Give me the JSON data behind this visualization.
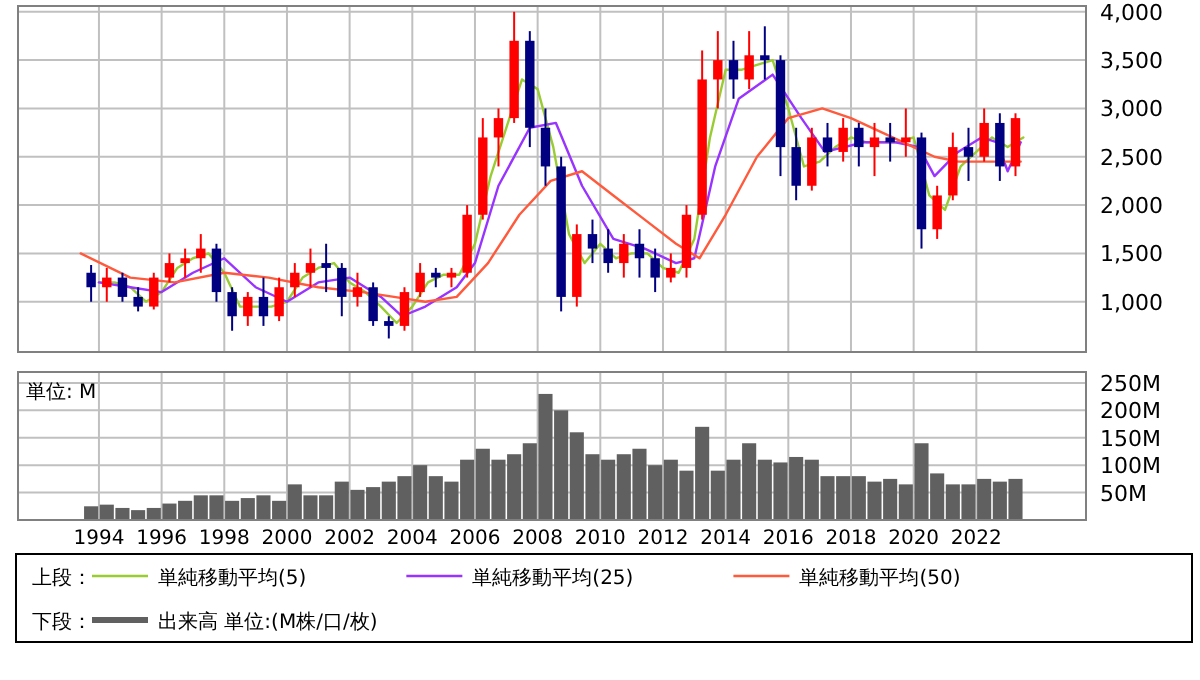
{
  "chart_data": [
    {
      "type": "candlestick",
      "legend": "bottom",
      "legend_title": "上段：",
      "grid": true,
      "tick_labels": "y",
      "xlim": [
        "1991-06",
        "2025-07"
      ],
      "ylim": [
        480,
        4060
      ],
      "xticks": [
        "1994",
        "1996",
        "1998",
        "2000",
        "2002",
        "2004",
        "2006",
        "2008",
        "2010",
        "2012",
        "2014",
        "2016",
        "2018",
        "2020",
        "2022"
      ],
      "yticks": [
        {
          "value": 1000,
          "label": "1,000"
        },
        {
          "value": 1500,
          "label": "1,500"
        },
        {
          "value": 2000,
          "label": "2,000"
        },
        {
          "value": 2500,
          "label": "2,500"
        },
        {
          "value": 3000,
          "label": "3,000"
        },
        {
          "value": 3500,
          "label": "3,500"
        },
        {
          "value": 4000,
          "label": "4,000"
        }
      ],
      "x": [
        "1993-10",
        "1994-04",
        "1994-10",
        "1995-04",
        "1995-10",
        "1996-04",
        "1996-10",
        "1997-04",
        "1997-10",
        "1998-04",
        "1998-10",
        "1999-04",
        "1999-10",
        "2000-04",
        "2000-10",
        "2001-04",
        "2001-10",
        "2002-04",
        "2002-10",
        "2003-04",
        "2003-10",
        "2004-04",
        "2004-10",
        "2005-04",
        "2005-10",
        "2006-04",
        "2006-10",
        "2007-04",
        "2007-10",
        "2008-04",
        "2008-10",
        "2009-04",
        "2009-10",
        "2010-04",
        "2010-10",
        "2011-04",
        "2011-10",
        "2012-04",
        "2012-10",
        "2013-04",
        "2013-10",
        "2014-04",
        "2014-10",
        "2015-04",
        "2015-10",
        "2016-04",
        "2016-10",
        "2017-04",
        "2017-10",
        "2018-04",
        "2018-10",
        "2019-04",
        "2019-10",
        "2020-04",
        "2020-10",
        "2021-04",
        "2021-10",
        "2022-04",
        "2022-10",
        "2023-04"
      ],
      "ohlc": [
        [
          1300,
          1380,
          1000,
          1150
        ],
        [
          1150,
          1350,
          1000,
          1250
        ],
        [
          1250,
          1300,
          1000,
          1050
        ],
        [
          1050,
          1150,
          900,
          950
        ],
        [
          950,
          1300,
          920,
          1250
        ],
        [
          1250,
          1500,
          1200,
          1400
        ],
        [
          1400,
          1550,
          1250,
          1450
        ],
        [
          1450,
          1700,
          1300,
          1550
        ],
        [
          1550,
          1600,
          1000,
          1100
        ],
        [
          1100,
          1150,
          700,
          850
        ],
        [
          850,
          1100,
          750,
          1050
        ],
        [
          1050,
          1250,
          750,
          850
        ],
        [
          850,
          1250,
          800,
          1150
        ],
        [
          1150,
          1400,
          1050,
          1300
        ],
        [
          1300,
          1550,
          1150,
          1400
        ],
        [
          1400,
          1600,
          1100,
          1350
        ],
        [
          1350,
          1400,
          850,
          1050
        ],
        [
          1050,
          1300,
          950,
          1150
        ],
        [
          1150,
          1200,
          750,
          800
        ],
        [
          800,
          850,
          620,
          750
        ],
        [
          750,
          1150,
          700,
          1100
        ],
        [
          1100,
          1400,
          1050,
          1300
        ],
        [
          1300,
          1350,
          1150,
          1250
        ],
        [
          1250,
          1350,
          1150,
          1300
        ],
        [
          1300,
          2000,
          1250,
          1900
        ],
        [
          1900,
          2900,
          1850,
          2700
        ],
        [
          2700,
          3000,
          2400,
          2900
        ],
        [
          2900,
          4000,
          2850,
          3700
        ],
        [
          3700,
          3800,
          2600,
          2800
        ],
        [
          2800,
          3000,
          2200,
          2400
        ],
        [
          2400,
          2500,
          900,
          1050
        ],
        [
          1050,
          1800,
          950,
          1700
        ],
        [
          1700,
          1850,
          1400,
          1550
        ],
        [
          1550,
          1750,
          1300,
          1400
        ],
        [
          1400,
          1700,
          1250,
          1600
        ],
        [
          1600,
          1750,
          1250,
          1450
        ],
        [
          1450,
          1550,
          1100,
          1250
        ],
        [
          1250,
          1500,
          1200,
          1350
        ],
        [
          1350,
          2000,
          1250,
          1900
        ],
        [
          1900,
          3600,
          1850,
          3300
        ],
        [
          3300,
          3800,
          3000,
          3500
        ],
        [
          3500,
          3700,
          3100,
          3300
        ],
        [
          3300,
          3800,
          3200,
          3550
        ],
        [
          3550,
          3850,
          3300,
          3500
        ],
        [
          3500,
          3550,
          2300,
          2600
        ],
        [
          2600,
          2800,
          2050,
          2200
        ],
        [
          2200,
          2800,
          2150,
          2700
        ],
        [
          2700,
          2850,
          2400,
          2550
        ],
        [
          2550,
          2900,
          2450,
          2800
        ],
        [
          2800,
          2850,
          2400,
          2600
        ],
        [
          2600,
          2850,
          2300,
          2700
        ],
        [
          2700,
          2850,
          2450,
          2650
        ],
        [
          2650,
          3000,
          2500,
          2700
        ],
        [
          2700,
          2750,
          1550,
          1750
        ],
        [
          1750,
          2200,
          1650,
          2100
        ],
        [
          2100,
          2750,
          2050,
          2600
        ],
        [
          2600,
          2800,
          2250,
          2500
        ],
        [
          2500,
          3000,
          2450,
          2850
        ],
        [
          2850,
          2950,
          2250,
          2400
        ],
        [
          2400,
          2950,
          2300,
          2900
        ]
      ],
      "colors": [
        "#000080",
        "#ff0000",
        "#000080",
        "#000080",
        "#ff0000",
        "#ff0000",
        "#ff0000",
        "#ff0000",
        "#000080",
        "#000080",
        "#ff0000",
        "#000080",
        "#ff0000",
        "#ff0000",
        "#ff0000",
        "#000080",
        "#000080",
        "#ff0000",
        "#000080",
        "#000080",
        "#ff0000",
        "#ff0000",
        "#000080",
        "#ff0000",
        "#ff0000",
        "#ff0000",
        "#ff0000",
        "#ff0000",
        "#000080",
        "#000080",
        "#000080",
        "#ff0000",
        "#000080",
        "#000080",
        "#ff0000",
        "#000080",
        "#000080",
        "#ff0000",
        "#ff0000",
        "#ff0000",
        "#ff0000",
        "#000080",
        "#ff0000",
        "#000080",
        "#000080",
        "#000080",
        "#ff0000",
        "#000080",
        "#ff0000",
        "#000080",
        "#ff0000",
        "#000080",
        "#ff0000",
        "#000080",
        "#ff0000",
        "#ff0000",
        "#000080",
        "#ff0000",
        "#000080",
        "#ff0000"
      ],
      "series": [
        {
          "name": "単純移動平均(5)",
          "type": "line",
          "color": "#99cc33",
          "x": [
            "1994-01",
            "1994-07",
            "1995-01",
            "1995-07",
            "1996-01",
            "1996-07",
            "1997-01",
            "1997-07",
            "1998-01",
            "1998-07",
            "1999-01",
            "1999-07",
            "2000-01",
            "2000-07",
            "2001-01",
            "2001-07",
            "2002-01",
            "2002-07",
            "2003-01",
            "2003-07",
            "2004-01",
            "2004-07",
            "2005-01",
            "2005-07",
            "2006-01",
            "2006-07",
            "2007-01",
            "2007-07",
            "2008-01",
            "2008-07",
            "2009-01",
            "2009-07",
            "2010-01",
            "2010-07",
            "2011-01",
            "2011-07",
            "2012-01",
            "2012-07",
            "2013-01",
            "2013-07",
            "2014-01",
            "2014-07",
            "2015-01",
            "2015-07",
            "2016-01",
            "2016-07",
            "2017-01",
            "2017-07",
            "2018-01",
            "2018-07",
            "2019-01",
            "2019-07",
            "2020-01",
            "2020-07",
            "2021-01",
            "2021-07",
            "2022-01",
            "2022-07",
            "2023-01",
            "2023-07"
          ],
          "values": [
            1200,
            1200,
            1150,
            1000,
            1100,
            1350,
            1450,
            1500,
            1300,
            950,
            950,
            950,
            1000,
            1250,
            1350,
            1400,
            1200,
            1100,
            950,
            780,
            950,
            1200,
            1280,
            1280,
            1600,
            2300,
            2800,
            3300,
            3200,
            2600,
            1700,
            1400,
            1600,
            1450,
            1500,
            1500,
            1350,
            1300,
            1650,
            2700,
            3400,
            3400,
            3450,
            3500,
            3000,
            2400,
            2450,
            2600,
            2700,
            2650,
            2650,
            2650,
            2700,
            2100,
            1950,
            2400,
            2550,
            2700,
            2600,
            2700
          ]
        },
        {
          "name": "単純移動平均(25)",
          "type": "line",
          "color": "#9933ff",
          "x": [
            "1994-01",
            "1995-01",
            "1996-01",
            "1997-01",
            "1998-01",
            "1999-01",
            "2000-01",
            "2001-01",
            "2002-01",
            "2003-01",
            "2003-09",
            "2004-06",
            "2005-06",
            "2006-01",
            "2006-10",
            "2007-10",
            "2008-08",
            "2009-06",
            "2010-06",
            "2011-06",
            "2012-06",
            "2013-01",
            "2013-09",
            "2014-06",
            "2015-07",
            "2016-06",
            "2017-03",
            "2018-06",
            "2019-06",
            "2020-03",
            "2020-09",
            "2021-06",
            "2022-03",
            "2022-09",
            "2023-01",
            "2023-06"
          ],
          "values": [
            1200,
            1150,
            1100,
            1300,
            1450,
            1150,
            1000,
            1200,
            1250,
            1050,
            850,
            950,
            1150,
            1400,
            2200,
            2800,
            2850,
            2200,
            1650,
            1550,
            1400,
            1450,
            2400,
            3100,
            3350,
            2900,
            2550,
            2650,
            2650,
            2600,
            2300,
            2550,
            2700,
            2650,
            2350,
            2650
          ]
        },
        {
          "name": "単純移動平均(50)",
          "type": "line",
          "color": "#ff5a3c",
          "x": [
            "1993-06",
            "1995-01",
            "1996-06",
            "1998-01",
            "1999-06",
            "2001-01",
            "2002-06",
            "2003-06",
            "2004-06",
            "2005-06",
            "2006-06",
            "2007-06",
            "2008-06",
            "2009-06",
            "2010-06",
            "2011-06",
            "2012-06",
            "2013-03",
            "2014-01",
            "2015-01",
            "2016-01",
            "2017-02",
            "2018-01",
            "2019-01",
            "2020-01",
            "2020-09",
            "2021-06",
            "2022-06",
            "2023-06"
          ],
          "values": [
            1500,
            1250,
            1200,
            1300,
            1250,
            1150,
            1100,
            1050,
            1000,
            1050,
            1400,
            1900,
            2250,
            2350,
            2100,
            1850,
            1600,
            1450,
            1900,
            2500,
            2900,
            3000,
            2900,
            2750,
            2600,
            2500,
            2450,
            2450,
            2450
          ]
        }
      ]
    },
    {
      "type": "bar",
      "legend": "bottom",
      "legend_title": "下段：",
      "grid": true,
      "ylabel": "単位: M",
      "xlim": [
        "1991-06",
        "2025-07"
      ],
      "ylim": [
        0,
        270
      ],
      "xticks": [
        "1994",
        "1996",
        "1998",
        "2000",
        "2002",
        "2004",
        "2006",
        "2008",
        "2010",
        "2012",
        "2014",
        "2016",
        "2018",
        "2020",
        "2022"
      ],
      "yticks": [
        {
          "value": 50,
          "label": "50M"
        },
        {
          "value": 100,
          "label": "100M"
        },
        {
          "value": 150,
          "label": "150M"
        },
        {
          "value": 200,
          "label": "200M"
        },
        {
          "value": 250,
          "label": "250M"
        }
      ],
      "x": [
        "1993-10",
        "1994-04",
        "1994-10",
        "1995-04",
        "1995-10",
        "1996-04",
        "1996-10",
        "1997-04",
        "1997-10",
        "1998-04",
        "1998-10",
        "1999-04",
        "1999-10",
        "2000-04",
        "2000-10",
        "2001-04",
        "2001-10",
        "2002-04",
        "2002-10",
        "2003-04",
        "2003-10",
        "2004-04",
        "2004-10",
        "2005-04",
        "2005-10",
        "2006-04",
        "2006-10",
        "2007-04",
        "2007-10",
        "2008-04",
        "2008-10",
        "2009-04",
        "2009-10",
        "2010-04",
        "2010-10",
        "2011-04",
        "2011-10",
        "2012-04",
        "2012-10",
        "2013-04",
        "2013-10",
        "2014-04",
        "2014-10",
        "2015-04",
        "2015-10",
        "2016-04",
        "2016-10",
        "2017-04",
        "2017-10",
        "2018-04",
        "2018-10",
        "2019-04",
        "2019-10",
        "2020-04",
        "2020-10",
        "2021-04",
        "2021-10",
        "2022-04",
        "2022-10",
        "2023-04"
      ],
      "series": [
        {
          "name": "出来高 単位:(M株/口/枚)",
          "color": "#606060",
          "values": [
            25,
            28,
            22,
            18,
            22,
            30,
            35,
            45,
            45,
            35,
            40,
            45,
            35,
            65,
            45,
            45,
            70,
            55,
            60,
            70,
            80,
            100,
            80,
            70,
            110,
            130,
            110,
            120,
            140,
            230,
            200,
            160,
            120,
            110,
            120,
            130,
            100,
            110,
            90,
            170,
            90,
            110,
            140,
            110,
            105,
            115,
            110,
            80,
            80,
            80,
            70,
            75,
            65,
            140,
            85,
            65,
            65,
            75,
            70,
            75
          ]
        }
      ]
    }
  ]
}
